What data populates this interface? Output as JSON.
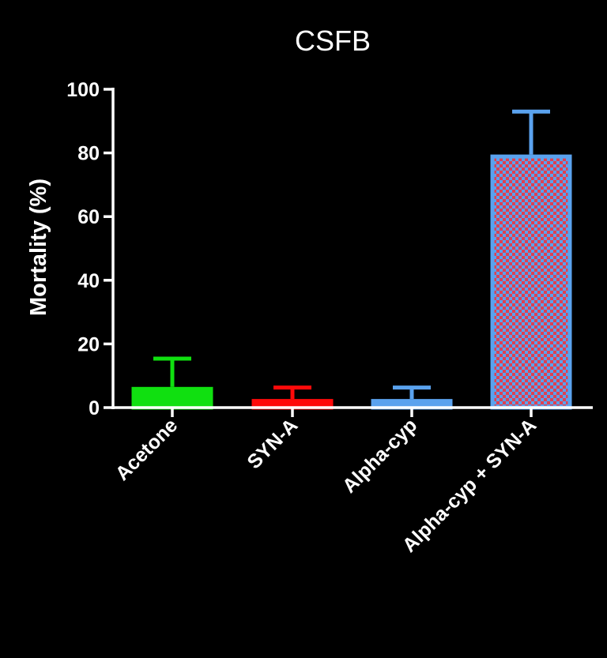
{
  "chart_data": {
    "type": "bar",
    "title": "CSFB",
    "xlabel": "",
    "ylabel": "Mortality (%)",
    "ylim": [
      0,
      100
    ],
    "yticks": [
      0,
      20,
      40,
      60,
      80,
      100
    ],
    "grid": false,
    "categories": [
      "Acetone",
      "SYN-A",
      "Alpha-cyp",
      "Alpha-cyp + SYN-A"
    ],
    "values": [
      6.5,
      2.7,
      2.7,
      79.5
    ],
    "errors": [
      8.9,
      3.6,
      3.6,
      13.5
    ],
    "bar_styles": [
      {
        "fill": "#10e010",
        "stroke": "#10e010",
        "pattern": "solid"
      },
      {
        "fill": "#ff0a0a",
        "stroke": "#ff0a0a",
        "pattern": "solid"
      },
      {
        "fill": "#5aa2ee",
        "stroke": "#5aa2ee",
        "pattern": "solid"
      },
      {
        "fill": "#5aa2ee",
        "stroke": "#5aa2ee",
        "pattern": "checker",
        "pattern_color": "#e04050"
      }
    ],
    "axis_color": "#ffffff",
    "background": "#000000"
  }
}
